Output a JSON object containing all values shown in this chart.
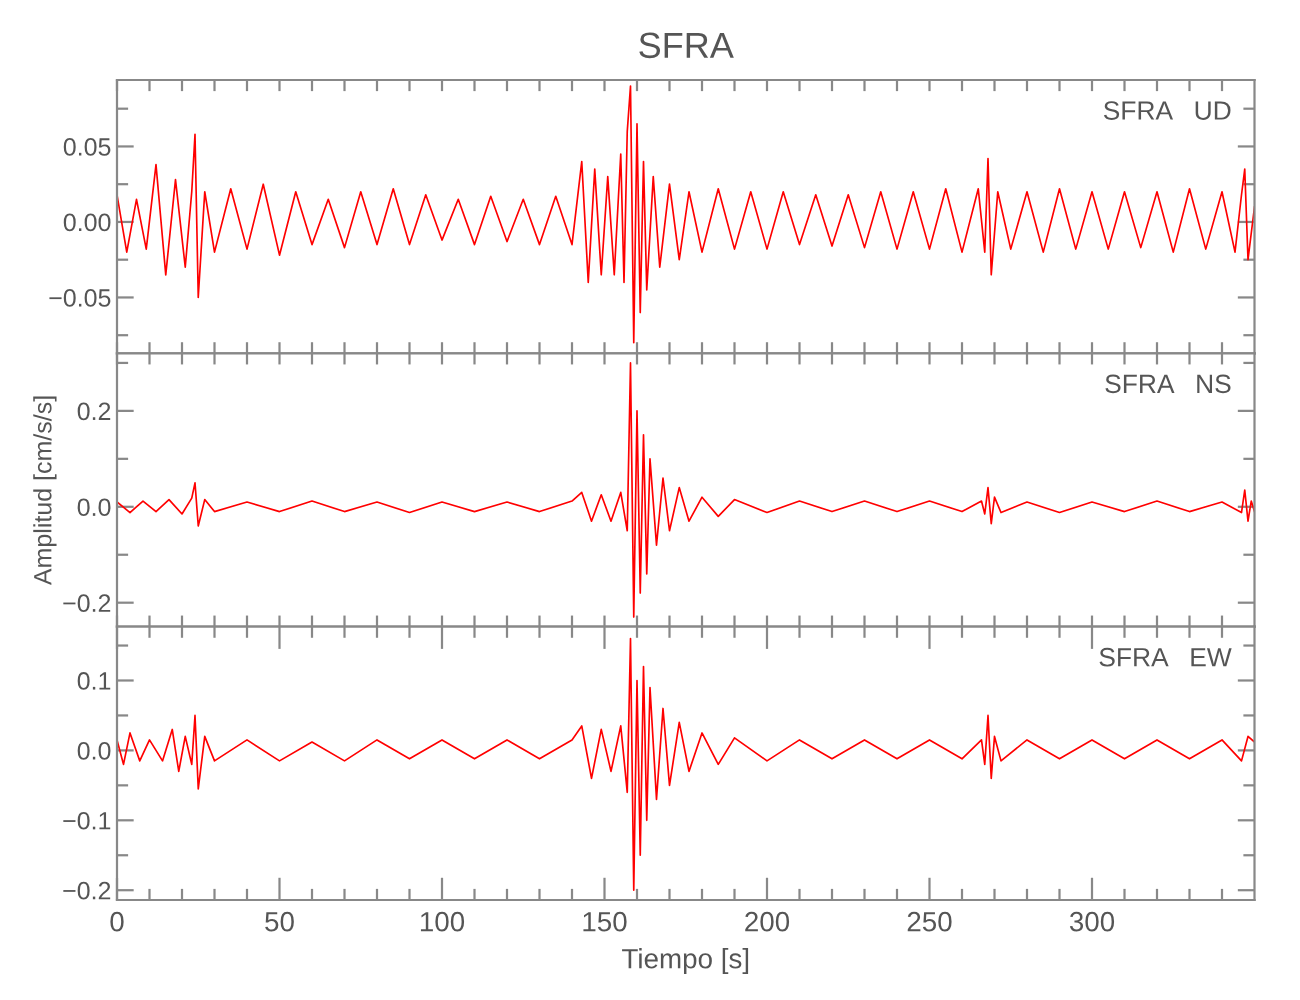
{
  "chart_data": [
    {
      "type": "line",
      "title": "SFRA",
      "annotations": [
        "SFRA   UD"
      ],
      "tick_labels": "y",
      "xlim": [
        0,
        350
      ],
      "ylim": [
        -0.087,
        0.094
      ],
      "xticks": [
        {
          "value": 0,
          "label": null
        },
        {
          "value": 10,
          "label": null
        },
        {
          "value": 20,
          "label": null
        },
        {
          "value": 30,
          "label": null
        },
        {
          "value": 40,
          "label": null
        },
        {
          "value": 50,
          "label": null
        },
        {
          "value": 60,
          "label": null
        },
        {
          "value": 70,
          "label": null
        },
        {
          "value": 80,
          "label": null
        },
        {
          "value": 90,
          "label": null
        },
        {
          "value": 100,
          "label": null
        },
        {
          "value": 110,
          "label": null
        },
        {
          "value": 120,
          "label": null
        },
        {
          "value": 130,
          "label": null
        },
        {
          "value": 140,
          "label": null
        },
        {
          "value": 150,
          "label": null
        },
        {
          "value": 160,
          "label": null
        },
        {
          "value": 170,
          "label": null
        },
        {
          "value": 180,
          "label": null
        },
        {
          "value": 190,
          "label": null
        },
        {
          "value": 200,
          "label": null
        },
        {
          "value": 210,
          "label": null
        },
        {
          "value": 220,
          "label": null
        },
        {
          "value": 230,
          "label": null
        },
        {
          "value": 240,
          "label": null
        },
        {
          "value": 250,
          "label": null
        },
        {
          "value": 260,
          "label": null
        },
        {
          "value": 270,
          "label": null
        },
        {
          "value": 280,
          "label": null
        },
        {
          "value": 290,
          "label": null
        },
        {
          "value": 300,
          "label": null
        },
        {
          "value": 310,
          "label": null
        },
        {
          "value": 320,
          "label": null
        },
        {
          "value": 330,
          "label": null
        },
        {
          "value": 340,
          "label": null
        }
      ],
      "yticks": [
        {
          "value": -0.075,
          "label": null
        },
        {
          "value": -0.05,
          "label": "−0.05"
        },
        {
          "value": -0.025,
          "label": null
        },
        {
          "value": 0,
          "label": "0.00"
        },
        {
          "value": 0.025,
          "label": null
        },
        {
          "value": 0.05,
          "label": "0.05"
        },
        {
          "value": 0.075,
          "label": null
        }
      ],
      "x": [
        0,
        3,
        6,
        9,
        12,
        15,
        18,
        21,
        23,
        24,
        25,
        27,
        30,
        35,
        40,
        45,
        50,
        55,
        60,
        65,
        70,
        75,
        80,
        85,
        90,
        95,
        100,
        105,
        110,
        115,
        120,
        125,
        130,
        135,
        140,
        143,
        145,
        147,
        149,
        151,
        153,
        155,
        156,
        157,
        158,
        159,
        160,
        161,
        162,
        163,
        165,
        167,
        170,
        173,
        176,
        180,
        185,
        190,
        195,
        200,
        205,
        210,
        215,
        220,
        225,
        230,
        235,
        240,
        245,
        250,
        255,
        260,
        265,
        267,
        268,
        269,
        271,
        275,
        280,
        285,
        290,
        295,
        300,
        305,
        310,
        315,
        320,
        325,
        330,
        335,
        340,
        344,
        346,
        347,
        348,
        350
      ],
      "series": [
        {
          "color": "#ff0000",
          "values": [
            0.018,
            -0.02,
            0.015,
            -0.018,
            0.038,
            -0.035,
            0.028,
            -0.03,
            0.02,
            0.058,
            -0.05,
            0.02,
            -0.02,
            0.022,
            -0.018,
            0.025,
            -0.022,
            0.02,
            -0.015,
            0.015,
            -0.017,
            0.02,
            -0.015,
            0.022,
            -0.015,
            0.018,
            -0.012,
            0.015,
            -0.015,
            0.017,
            -0.013,
            0.015,
            -0.015,
            0.017,
            -0.015,
            0.04,
            -0.04,
            0.035,
            -0.035,
            0.03,
            -0.035,
            0.045,
            -0.04,
            0.06,
            0.09,
            -0.08,
            0.065,
            -0.06,
            0.04,
            -0.045,
            0.03,
            -0.03,
            0.025,
            -0.025,
            0.02,
            -0.02,
            0.022,
            -0.018,
            0.02,
            -0.018,
            0.02,
            -0.015,
            0.018,
            -0.016,
            0.018,
            -0.017,
            0.02,
            -0.018,
            0.02,
            -0.018,
            0.022,
            -0.02,
            0.022,
            -0.02,
            0.042,
            -0.035,
            0.02,
            -0.018,
            0.02,
            -0.02,
            0.022,
            -0.018,
            0.02,
            -0.018,
            0.02,
            -0.017,
            0.02,
            -0.02,
            0.022,
            -0.018,
            0.02,
            -0.02,
            0.018,
            0.035,
            -0.025,
            0.01
          ]
        }
      ]
    },
    {
      "type": "line",
      "annotations": [
        "SFRA   NS"
      ],
      "ylabel": "Amplitud [cm/s/s]",
      "tick_labels": "y",
      "xlim": [
        0,
        350
      ],
      "ylim": [
        -0.25,
        0.32
      ],
      "xticks": [
        {
          "value": 0,
          "label": null
        },
        {
          "value": 10,
          "label": null
        },
        {
          "value": 20,
          "label": null
        },
        {
          "value": 30,
          "label": null
        },
        {
          "value": 40,
          "label": null
        },
        {
          "value": 50,
          "label": null
        },
        {
          "value": 60,
          "label": null
        },
        {
          "value": 70,
          "label": null
        },
        {
          "value": 80,
          "label": null
        },
        {
          "value": 90,
          "label": null
        },
        {
          "value": 100,
          "label": null
        },
        {
          "value": 110,
          "label": null
        },
        {
          "value": 120,
          "label": null
        },
        {
          "value": 130,
          "label": null
        },
        {
          "value": 140,
          "label": null
        },
        {
          "value": 150,
          "label": null
        },
        {
          "value": 160,
          "label": null
        },
        {
          "value": 170,
          "label": null
        },
        {
          "value": 180,
          "label": null
        },
        {
          "value": 190,
          "label": null
        },
        {
          "value": 200,
          "label": null
        },
        {
          "value": 210,
          "label": null
        },
        {
          "value": 220,
          "label": null
        },
        {
          "value": 230,
          "label": null
        },
        {
          "value": 240,
          "label": null
        },
        {
          "value": 250,
          "label": null
        },
        {
          "value": 260,
          "label": null
        },
        {
          "value": 270,
          "label": null
        },
        {
          "value": 280,
          "label": null
        },
        {
          "value": 290,
          "label": null
        },
        {
          "value": 300,
          "label": null
        },
        {
          "value": 310,
          "label": null
        },
        {
          "value": 320,
          "label": null
        },
        {
          "value": 330,
          "label": null
        },
        {
          "value": 340,
          "label": null
        }
      ],
      "yticks": [
        {
          "value": -0.2,
          "label": "−0.2"
        },
        {
          "value": -0.1,
          "label": null
        },
        {
          "value": 0,
          "label": "0.0"
        },
        {
          "value": 0.1,
          "label": null
        },
        {
          "value": 0.2,
          "label": "0.2"
        },
        {
          "value": 0.3,
          "label": null
        }
      ],
      "x": [
        0,
        4,
        8,
        12,
        16,
        20,
        23,
        24,
        25,
        27,
        30,
        40,
        50,
        60,
        70,
        80,
        90,
        100,
        110,
        120,
        130,
        140,
        143,
        146,
        149,
        152,
        155,
        157,
        158,
        159,
        160,
        161,
        162,
        163,
        164,
        166,
        168,
        170,
        173,
        176,
        180,
        185,
        190,
        200,
        210,
        220,
        230,
        240,
        250,
        260,
        266,
        267,
        268,
        269,
        270,
        272,
        280,
        290,
        300,
        310,
        320,
        330,
        340,
        346,
        347,
        348,
        349,
        350
      ],
      "series": [
        {
          "color": "#ff0000",
          "values": [
            0.01,
            -0.012,
            0.012,
            -0.01,
            0.015,
            -0.015,
            0.018,
            0.05,
            -0.04,
            0.015,
            -0.01,
            0.01,
            -0.01,
            0.012,
            -0.01,
            0.01,
            -0.012,
            0.01,
            -0.01,
            0.01,
            -0.01,
            0.012,
            0.03,
            -0.03,
            0.025,
            -0.03,
            0.03,
            -0.05,
            0.3,
            -0.23,
            0.2,
            -0.18,
            0.15,
            -0.14,
            0.1,
            -0.08,
            0.06,
            -0.05,
            0.04,
            -0.03,
            0.02,
            -0.02,
            0.015,
            -0.012,
            0.012,
            -0.01,
            0.012,
            -0.01,
            0.012,
            -0.01,
            0.012,
            -0.015,
            0.04,
            -0.035,
            0.02,
            -0.012,
            0.01,
            -0.012,
            0.01,
            -0.01,
            0.012,
            -0.01,
            0.01,
            -0.012,
            0.035,
            -0.03,
            0.012,
            -0.01
          ]
        }
      ]
    },
    {
      "type": "line",
      "annotations": [
        "SFRA   EW"
      ],
      "xlabel": "Tiempo [s]",
      "xlim": [
        0,
        350
      ],
      "ylim": [
        -0.214,
        0.177
      ],
      "xticks": [
        0,
        {
          "value": 10,
          "label": null
        },
        {
          "value": 20,
          "label": null
        },
        {
          "value": 30,
          "label": null
        },
        {
          "value": 40,
          "label": null
        },
        50,
        {
          "value": 60,
          "label": null
        },
        {
          "value": 70,
          "label": null
        },
        {
          "value": 80,
          "label": null
        },
        {
          "value": 90,
          "label": null
        },
        100,
        {
          "value": 110,
          "label": null
        },
        {
          "value": 120,
          "label": null
        },
        {
          "value": 130,
          "label": null
        },
        {
          "value": 140,
          "label": null
        },
        150,
        {
          "value": 160,
          "label": null
        },
        {
          "value": 170,
          "label": null
        },
        {
          "value": 180,
          "label": null
        },
        {
          "value": 190,
          "label": null
        },
        200,
        {
          "value": 210,
          "label": null
        },
        {
          "value": 220,
          "label": null
        },
        {
          "value": 230,
          "label": null
        },
        {
          "value": 240,
          "label": null
        },
        250,
        {
          "value": 260,
          "label": null
        },
        {
          "value": 270,
          "label": null
        },
        {
          "value": 280,
          "label": null
        },
        {
          "value": 290,
          "label": null
        },
        300,
        {
          "value": 310,
          "label": null
        },
        {
          "value": 320,
          "label": null
        },
        {
          "value": 330,
          "label": null
        },
        {
          "value": 340,
          "label": null
        }
      ],
      "yticks": [
        {
          "value": -0.2,
          "label": "−0.2"
        },
        {
          "value": -0.15,
          "label": null
        },
        {
          "value": -0.1,
          "label": "−0.1"
        },
        {
          "value": -0.05,
          "label": null
        },
        {
          "value": 0,
          "label": "0.0"
        },
        {
          "value": 0.05,
          "label": null
        },
        {
          "value": 0.1,
          "label": "0.1"
        },
        {
          "value": 0.15,
          "label": null
        }
      ],
      "x": [
        0,
        2,
        4,
        7,
        10,
        14,
        17,
        19,
        21,
        23,
        24,
        25,
        27,
        30,
        40,
        50,
        60,
        70,
        80,
        90,
        100,
        110,
        120,
        130,
        140,
        143,
        146,
        149,
        152,
        155,
        157,
        158,
        159,
        160,
        161,
        162,
        163,
        164,
        166,
        168,
        170,
        173,
        176,
        180,
        185,
        190,
        200,
        210,
        220,
        230,
        240,
        250,
        260,
        266,
        267,
        268,
        269,
        270,
        272,
        280,
        290,
        300,
        310,
        320,
        330,
        340,
        346,
        348,
        350
      ],
      "series": [
        {
          "color": "#ff0000",
          "values": [
            0.015,
            -0.02,
            0.025,
            -0.015,
            0.015,
            -0.015,
            0.03,
            -0.03,
            0.02,
            -0.02,
            0.05,
            -0.055,
            0.02,
            -0.015,
            0.015,
            -0.015,
            0.012,
            -0.015,
            0.015,
            -0.012,
            0.015,
            -0.012,
            0.015,
            -0.012,
            0.015,
            0.035,
            -0.04,
            0.03,
            -0.03,
            0.035,
            -0.06,
            0.16,
            -0.2,
            0.1,
            -0.15,
            0.12,
            -0.1,
            0.09,
            -0.07,
            0.06,
            -0.05,
            0.04,
            -0.03,
            0.025,
            -0.02,
            0.018,
            -0.015,
            0.015,
            -0.012,
            0.015,
            -0.012,
            0.015,
            -0.012,
            0.015,
            -0.02,
            0.05,
            -0.04,
            0.02,
            -0.015,
            0.015,
            -0.012,
            0.015,
            -0.012,
            0.015,
            -0.012,
            0.015,
            -0.015,
            0.02,
            0.012
          ]
        }
      ]
    }
  ]
}
